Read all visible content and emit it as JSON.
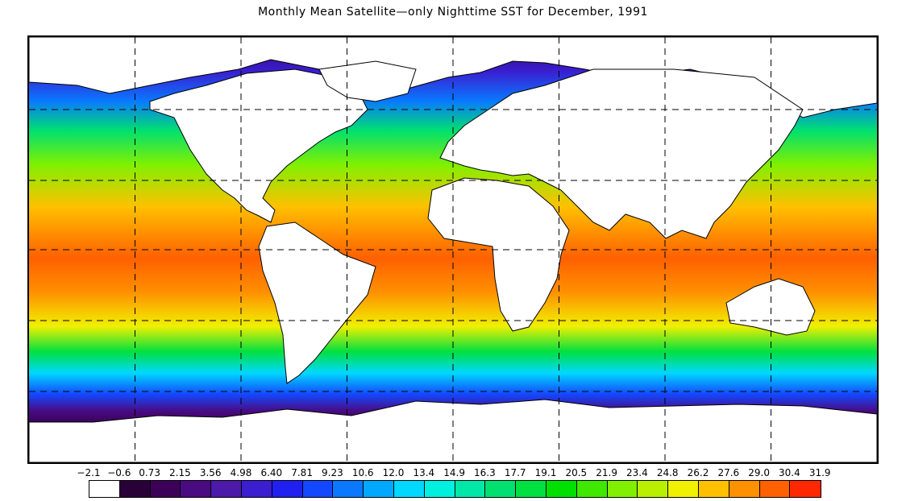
{
  "title": "Monthly Mean Satellite—only Nighttime SST for December, 1991",
  "legend": {
    "labels": [
      "−2.1",
      "−0.6",
      "0.73",
      "2.15",
      "3.56",
      "4.98",
      "6.40",
      "7.81",
      "9.23",
      "10.6",
      "12.0",
      "13.4",
      "14.9",
      "16.3",
      "17.7",
      "19.1",
      "20.5",
      "21.9",
      "23.4",
      "24.8",
      "26.2",
      "27.6",
      "29.0",
      "30.4",
      "31.9"
    ],
    "colors": [
      "#ffffff",
      "#2a0038",
      "#3c0058",
      "#4a0a80",
      "#4b1aa8",
      "#3a1ed0",
      "#2020f0",
      "#1448ff",
      "#0a78ff",
      "#00a8ff",
      "#00d8ff",
      "#00f0e0",
      "#00e8a8",
      "#00e070",
      "#00e040",
      "#00e000",
      "#40e800",
      "#80f000",
      "#b8f000",
      "#f0f000",
      "#ffc000",
      "#ff9000",
      "#ff6000",
      "#ff2800"
    ]
  },
  "map": {
    "gridlines": "dashed",
    "land_color": "#ffffff",
    "coastline_color": "#000000"
  }
}
